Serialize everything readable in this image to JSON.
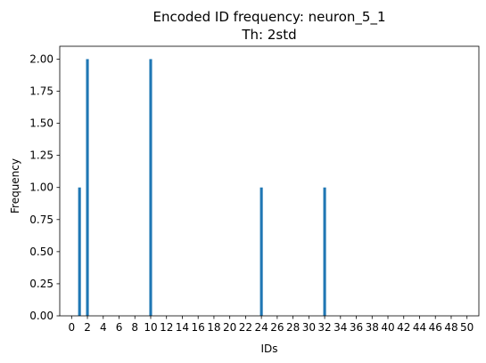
{
  "chart_data": {
    "type": "bar",
    "title": "Encoded ID frequency: neuron_5_1",
    "subtitle": "Th: 2std",
    "xlabel": "IDs",
    "ylabel": "Frequency",
    "xlim": [
      -1.5,
      51.5
    ],
    "ylim": [
      0,
      2.1
    ],
    "x_ticks": [
      0,
      2,
      4,
      6,
      8,
      10,
      12,
      14,
      16,
      18,
      20,
      22,
      24,
      26,
      28,
      30,
      32,
      34,
      36,
      38,
      40,
      42,
      44,
      46,
      48,
      50
    ],
    "y_ticks": [
      "0.00",
      "0.25",
      "0.50",
      "0.75",
      "1.00",
      "1.25",
      "1.50",
      "1.75",
      "2.00"
    ],
    "bar_color": "#1f77b4",
    "grid": false,
    "legend": "none",
    "series": [
      {
        "x": [
          1,
          2,
          10,
          24,
          32
        ],
        "values": [
          1,
          2,
          2,
          1,
          1
        ]
      }
    ]
  }
}
